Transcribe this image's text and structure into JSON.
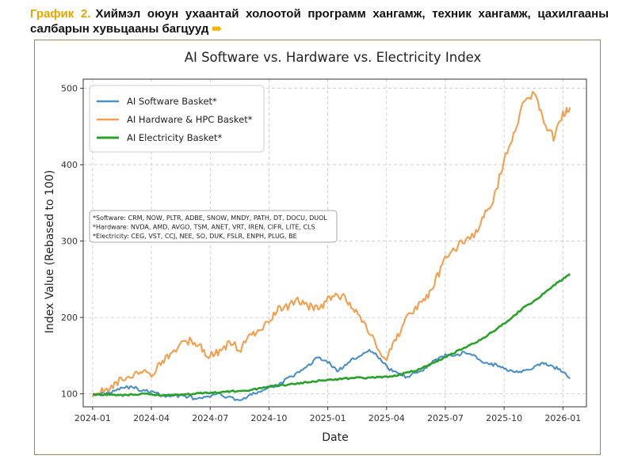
{
  "header": {
    "label": "График 2.",
    "text": "Хиймэл оюун ухаантай холоотой программ хангамж, техник хангамж, цахилгааны салбарын хувьцааны багцууд",
    "arrow_icon": "arrow-right-icon"
  },
  "colors": {
    "software": "#4c8fc3",
    "hardware": "#f2a050",
    "electricity": "#2ca02c",
    "header_label": "#e0a800"
  },
  "chart_data": {
    "type": "line",
    "title": "AI Software vs. Hardware vs. Electricity Index",
    "xlabel": "Date",
    "ylabel": "Index Value (Rebased to 100)",
    "ylim": [
      83,
      512
    ],
    "xlim": [
      2023.96,
      2026.1
    ],
    "yticks": [
      100,
      200,
      300,
      400,
      500
    ],
    "xticks": [
      {
        "label": "2024-01",
        "t": 2024.0
      },
      {
        "label": "2024-04",
        "t": 2024.25
      },
      {
        "label": "2024-07",
        "t": 2024.5
      },
      {
        "label": "2024-10",
        "t": 2024.75
      },
      {
        "label": "2025-01",
        "t": 2025.0
      },
      {
        "label": "2025-04",
        "t": 2025.25
      },
      {
        "label": "2025-07",
        "t": 2025.5
      },
      {
        "label": "2025-10",
        "t": 2025.75
      },
      {
        "label": "2026-01",
        "t": 2026.0
      }
    ],
    "grid": true,
    "legend_position": "top-left",
    "series": [
      {
        "name": "AI Software Basket*",
        "color_key": "software",
        "x": [
          2024.0,
          2024.04,
          2024.08,
          2024.12,
          2024.17,
          2024.21,
          2024.25,
          2024.29,
          2024.33,
          2024.38,
          2024.42,
          2024.46,
          2024.5,
          2024.54,
          2024.58,
          2024.63,
          2024.67,
          2024.71,
          2024.75,
          2024.79,
          2024.83,
          2024.88,
          2024.92,
          2024.96,
          2025.0,
          2025.04,
          2025.08,
          2025.12,
          2025.17,
          2025.21,
          2025.25,
          2025.29,
          2025.33,
          2025.38,
          2025.42,
          2025.46,
          2025.5,
          2025.54,
          2025.58,
          2025.63,
          2025.67,
          2025.71,
          2025.75,
          2025.79,
          2025.83,
          2025.88,
          2025.92,
          2025.96,
          2026.0,
          2026.03
        ],
        "values": [
          100,
          100,
          103,
          108,
          109,
          104,
          103,
          98,
          97,
          98,
          95,
          93,
          97,
          100,
          95,
          92,
          98,
          103,
          108,
          112,
          120,
          128,
          138,
          148,
          142,
          130,
          138,
          148,
          157,
          150,
          135,
          128,
          122,
          128,
          135,
          145,
          150,
          148,
          155,
          148,
          140,
          138,
          133,
          130,
          130,
          135,
          140,
          135,
          130,
          120
        ]
      },
      {
        "name": "AI Hardware & HPC Basket*",
        "color_key": "hardware",
        "x": [
          2024.0,
          2024.04,
          2024.08,
          2024.12,
          2024.17,
          2024.21,
          2024.25,
          2024.29,
          2024.33,
          2024.38,
          2024.42,
          2024.46,
          2024.5,
          2024.54,
          2024.58,
          2024.63,
          2024.67,
          2024.71,
          2024.75,
          2024.79,
          2024.83,
          2024.88,
          2024.92,
          2024.96,
          2025.0,
          2025.04,
          2025.08,
          2025.12,
          2025.17,
          2025.21,
          2025.25,
          2025.29,
          2025.33,
          2025.38,
          2025.42,
          2025.46,
          2025.5,
          2025.54,
          2025.58,
          2025.63,
          2025.67,
          2025.71,
          2025.75,
          2025.79,
          2025.83,
          2025.88,
          2025.92,
          2025.96,
          2026.0,
          2026.03
        ],
        "values": [
          100,
          103,
          110,
          120,
          125,
          132,
          127,
          140,
          150,
          165,
          170,
          160,
          150,
          155,
          165,
          160,
          175,
          185,
          195,
          210,
          215,
          222,
          215,
          210,
          222,
          230,
          225,
          205,
          185,
          160,
          145,
          170,
          195,
          215,
          225,
          250,
          275,
          290,
          300,
          310,
          335,
          360,
          405,
          440,
          480,
          495,
          455,
          435,
          465,
          475
        ]
      },
      {
        "name": "AI Electricity Basket*",
        "color_key": "electricity",
        "x": [
          2024.0,
          2024.04,
          2024.08,
          2024.12,
          2024.17,
          2024.21,
          2024.25,
          2024.29,
          2024.33,
          2024.38,
          2024.42,
          2024.46,
          2024.5,
          2024.54,
          2024.58,
          2024.63,
          2024.67,
          2024.71,
          2024.75,
          2024.79,
          2024.83,
          2024.88,
          2024.92,
          2024.96,
          2025.0,
          2025.04,
          2025.08,
          2025.12,
          2025.17,
          2025.21,
          2025.25,
          2025.29,
          2025.33,
          2025.38,
          2025.42,
          2025.46,
          2025.5,
          2025.54,
          2025.58,
          2025.63,
          2025.67,
          2025.71,
          2025.75,
          2025.79,
          2025.83,
          2025.88,
          2025.92,
          2025.96,
          2026.0,
          2026.03
        ],
        "values": [
          100,
          99,
          99,
          98,
          99,
          100,
          99,
          98,
          98,
          99,
          100,
          101,
          101,
          102,
          103,
          104,
          105,
          107,
          109,
          111,
          112,
          114,
          115,
          117,
          118,
          119,
          120,
          121,
          121,
          122,
          122,
          124,
          127,
          131,
          136,
          142,
          148,
          154,
          160,
          167,
          175,
          183,
          192,
          202,
          212,
          222,
          232,
          242,
          250,
          257
        ]
      }
    ],
    "note_lines": [
      "*Software: CRM, NOW, PLTR, ADBE, SNOW, MNDY, PATH, DT, DOCU, DUOL",
      "*Hardware: NVDA, AMD, AVGO, TSM, ANET, VRT, IREN, CIFR, LITE, CLS",
      "*Electricity: CEG, VST, CCJ, NEE, SO, DUK, FSLR, ENPH, PLUG, BE"
    ]
  }
}
